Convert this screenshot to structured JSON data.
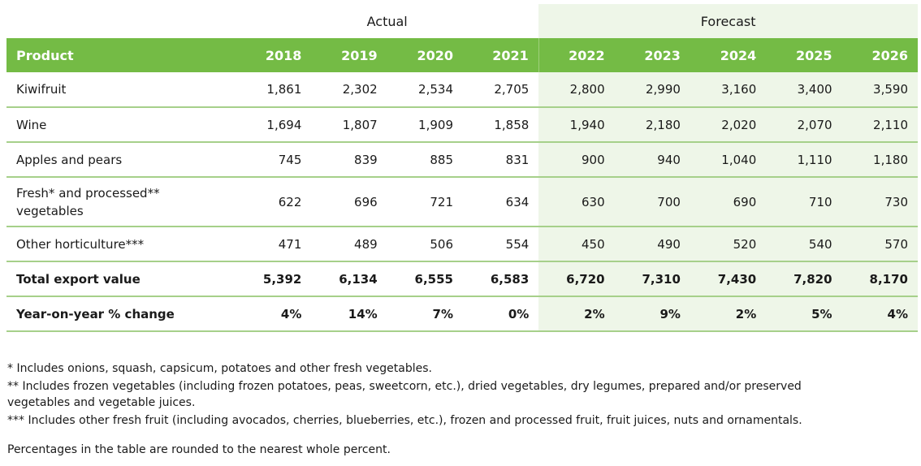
{
  "table": {
    "groups": [
      "Actual",
      "Forecast"
    ],
    "header": [
      "Product",
      "2018",
      "2019",
      "2020",
      "2021",
      "2022",
      "2023",
      "2024",
      "2025",
      "2026"
    ],
    "rows": [
      [
        "Kiwifruit",
        "1,861",
        "2,302",
        "2,534",
        "2,705",
        "2,800",
        "2,990",
        "3,160",
        "3,400",
        "3,590"
      ],
      [
        "Wine",
        "1,694",
        "1,807",
        "1,909",
        "1,858",
        "1,940",
        "2,180",
        "2,020",
        "2,070",
        "2,110"
      ],
      [
        "Apples and pears",
        "745",
        "839",
        "885",
        "831",
        "900",
        "940",
        "1,040",
        "1,110",
        "1,180"
      ],
      [
        "Fresh* and processed** vegetables",
        "622",
        "696",
        "721",
        "634",
        "630",
        "700",
        "690",
        "710",
        "730"
      ],
      [
        "Other horticulture***",
        "471",
        "489",
        "506",
        "554",
        "450",
        "490",
        "520",
        "540",
        "570"
      ],
      [
        "Total export value",
        "5,392",
        "6,134",
        "6,555",
        "6,583",
        "6,720",
        "7,310",
        "7,430",
        "7,820",
        "8,170"
      ],
      [
        "Year-on-year % change",
        "4%",
        "14%",
        "7%",
        "0%",
        "2%",
        "9%",
        "2%",
        "5%",
        "4%"
      ]
    ]
  },
  "footnotes": [
    "* Includes onions, squash, capsicum, potatoes and other fresh vegetables.",
    "** Includes frozen vegetables (including frozen potatoes, peas, sweetcorn, etc.), dried vegetables, dry legumes, prepared and/or preserved vegetables and vegetable juices.",
    "*** Includes other fresh fruit (including avocados, cherries, blueberries, etc.), frozen and processed fruit, fruit juices, nuts and ornamentals."
  ],
  "note": "Percentages in the table are rounded to the nearest whole percent."
}
